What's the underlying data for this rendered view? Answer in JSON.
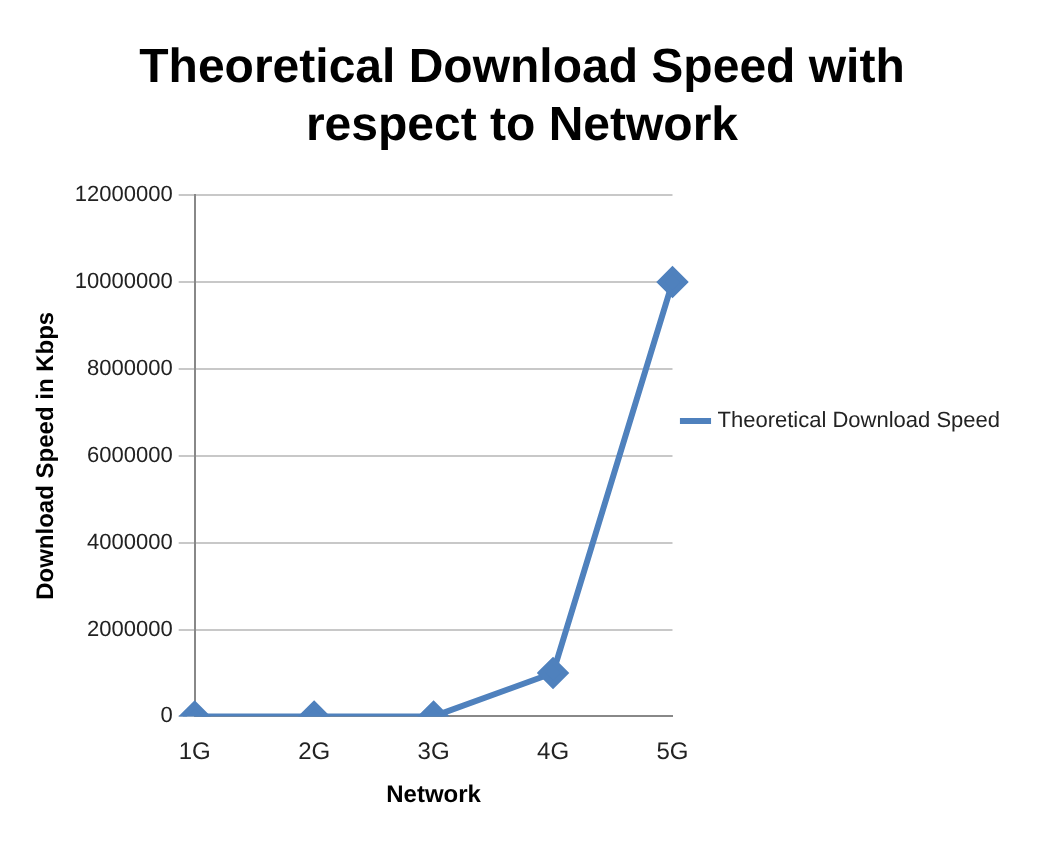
{
  "chart_data": {
    "type": "line",
    "title": "Theoretical Download Speed with respect to Network",
    "xlabel": "Network",
    "ylabel": "Download Speed in Kbps",
    "categories": [
      "1G",
      "2G",
      "3G",
      "4G",
      "5G"
    ],
    "series": [
      {
        "name": "Theoretical Download Speed",
        "color": "#4f81bd",
        "values": [
          0,
          0,
          0,
          1000000,
          10000000
        ]
      }
    ],
    "ylim": [
      0,
      12000000
    ],
    "yticks": [
      0,
      2000000,
      4000000,
      6000000,
      8000000,
      10000000,
      12000000
    ],
    "grid": "y",
    "legend": "right",
    "marker": "diamond",
    "line_style": "solid"
  }
}
